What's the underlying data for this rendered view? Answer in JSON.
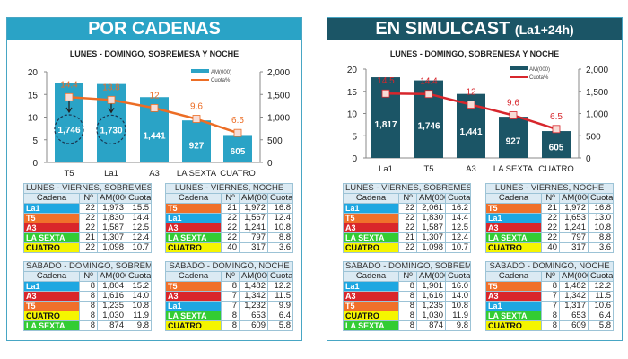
{
  "colors": {
    "left_header": "#2aa3c6",
    "right_header": "#1b5566",
    "left_bar": "#2aa3c6",
    "right_bar": "#1b5566",
    "left_line": "#ec6d25",
    "right_line": "#d7262c",
    "channels": {
      "La1": "#1ea7e1",
      "T5": "#f0702a",
      "A3": "#d9262a",
      "LA SEXTA": "#33cc33",
      "CUATRO": "#f5f500"
    }
  },
  "left_panel": {
    "title": "POR CADENAS"
  },
  "right_panel": {
    "title": "EN SIMULCAST",
    "title_suffix": "(La1+24h)"
  },
  "chart_data": [
    {
      "type": "bar+line",
      "title": "LUNES - DOMINGO, SOBREMESA Y NOCHE",
      "categories": [
        "T5",
        "La1",
        "A3",
        "LA SEXTA",
        "CUATRO"
      ],
      "series": [
        {
          "name": "AM(000)",
          "type": "bar",
          "axis": "right",
          "values": [
            1746,
            1730,
            1441,
            927,
            605
          ]
        },
        {
          "name": "Cuota%",
          "type": "line",
          "axis": "left",
          "values": [
            14.4,
            13.8,
            12,
            9.6,
            6.5
          ]
        }
      ],
      "left_axis": {
        "range": [
          0,
          20
        ],
        "ticks": [
          "0",
          "5",
          "10",
          "15",
          "20"
        ]
      },
      "right_axis": {
        "range": [
          0,
          2000
        ],
        "ticks": [
          "0",
          "500",
          "1,000",
          "1,500",
          "2,000"
        ]
      },
      "bar_labels": [
        "1,746",
        "1,730",
        "1,441",
        "927",
        "605"
      ],
      "line_labels": [
        "14.4",
        "13.8",
        "12",
        "9.6",
        "6.5"
      ],
      "highlighted": [
        0,
        1
      ],
      "legend": "top-right"
    },
    {
      "type": "bar+line",
      "title": "LUNES - DOMINGO, SOBREMESA Y NOCHE",
      "categories": [
        "La1",
        "T5",
        "A3",
        "LA SEXTA",
        "CUATRO"
      ],
      "series": [
        {
          "name": "AM(000)",
          "type": "bar",
          "axis": "right",
          "values": [
            1817,
            1746,
            1441,
            927,
            605
          ]
        },
        {
          "name": "Cuota%",
          "type": "line",
          "axis": "left",
          "values": [
            14.5,
            14.4,
            12,
            9.6,
            6.5
          ]
        }
      ],
      "left_axis": {
        "range": [
          0,
          20
        ],
        "ticks": [
          "0",
          "5",
          "10",
          "15",
          "20"
        ]
      },
      "right_axis": {
        "range": [
          0,
          2000
        ],
        "ticks": [
          "0",
          "500",
          "1,000",
          "1,500",
          "2,000"
        ]
      },
      "bar_labels": [
        "1,817",
        "1,746",
        "1,441",
        "927",
        "605"
      ],
      "line_labels": [
        "14.5",
        "14.4",
        "12",
        "9.6",
        "6.5"
      ],
      "highlighted": [],
      "legend": "top-right"
    }
  ],
  "table_headers": [
    "Cadena",
    "Nº",
    "AM(000",
    "Cuota%"
  ],
  "tables": {
    "left": [
      {
        "title": "LUNES - VIERNES, SOBREMESA",
        "rows": [
          [
            "La1",
            "22",
            "1,973",
            "15.5"
          ],
          [
            "T5",
            "22",
            "1,830",
            "14.4"
          ],
          [
            "A3",
            "22",
            "1,587",
            "12.5"
          ],
          [
            "LA SEXTA",
            "21",
            "1,307",
            "12.4"
          ],
          [
            "CUATRO",
            "22",
            "1,098",
            "10.7"
          ]
        ]
      },
      {
        "title": "LUNES - VIERNES, NOCHE",
        "rows": [
          [
            "T5",
            "21",
            "1,972",
            "16.8"
          ],
          [
            "La1",
            "22",
            "1,567",
            "12.4"
          ],
          [
            "A3",
            "22",
            "1,241",
            "10.8"
          ],
          [
            "LA SEXTA",
            "22",
            "797",
            "8.8"
          ],
          [
            "CUATRO",
            "40",
            "317",
            "3.6"
          ]
        ]
      },
      {
        "title": "SÁBADO - DOMINGO, SOBREMESA",
        "rows": [
          [
            "La1",
            "8",
            "1,804",
            "15.2"
          ],
          [
            "A3",
            "8",
            "1,616",
            "14.0"
          ],
          [
            "T5",
            "8",
            "1,235",
            "10.8"
          ],
          [
            "CUATRO",
            "8",
            "1,030",
            "11.9"
          ],
          [
            "LA SEXTA",
            "8",
            "874",
            "9.8"
          ]
        ]
      },
      {
        "title": "SÁBADO - DOMINGO, NOCHE",
        "rows": [
          [
            "T5",
            "8",
            "1,482",
            "12.2"
          ],
          [
            "A3",
            "7",
            "1,342",
            "11.5"
          ],
          [
            "La1",
            "7",
            "1,232",
            "9.9"
          ],
          [
            "LA SEXTA",
            "8",
            "653",
            "6.4"
          ],
          [
            "CUATRO",
            "8",
            "609",
            "5.8"
          ]
        ]
      }
    ],
    "right": [
      {
        "title": "LUNES - VIERNES, SOBREMESA",
        "rows": [
          [
            "La1",
            "22",
            "2,061",
            "16.2"
          ],
          [
            "T5",
            "22",
            "1,830",
            "14.4"
          ],
          [
            "A3",
            "22",
            "1,587",
            "12.5"
          ],
          [
            "LA SEXTA",
            "21",
            "1,307",
            "12.4"
          ],
          [
            "CUATRO",
            "22",
            "1,098",
            "10.7"
          ]
        ]
      },
      {
        "title": "LUNES - VIERNES, NOCHE",
        "rows": [
          [
            "T5",
            "21",
            "1,972",
            "16.8"
          ],
          [
            "La1",
            "22",
            "1,653",
            "13.0"
          ],
          [
            "A3",
            "22",
            "1,241",
            "10.8"
          ],
          [
            "LA SEXTA",
            "22",
            "797",
            "8.8"
          ],
          [
            "CUATRO",
            "40",
            "317",
            "3.6"
          ]
        ]
      },
      {
        "title": "SÁBADO - DOMINGO, SOBREMESA",
        "rows": [
          [
            "La1",
            "8",
            "1,901",
            "16.0"
          ],
          [
            "A3",
            "8",
            "1,616",
            "14.0"
          ],
          [
            "T5",
            "8",
            "1,235",
            "10.8"
          ],
          [
            "CUATRO",
            "8",
            "1,030",
            "11.9"
          ],
          [
            "LA SEXTA",
            "8",
            "874",
            "9.8"
          ]
        ]
      },
      {
        "title": "SÁBADO - DOMINGO, NOCHE",
        "rows": [
          [
            "T5",
            "8",
            "1,482",
            "12.2"
          ],
          [
            "A3",
            "7",
            "1,342",
            "11.5"
          ],
          [
            "La1",
            "7",
            "1,317",
            "10.6"
          ],
          [
            "LA SEXTA",
            "8",
            "653",
            "6.4"
          ],
          [
            "CUATRO",
            "8",
            "609",
            "5.8"
          ]
        ]
      }
    ]
  }
}
